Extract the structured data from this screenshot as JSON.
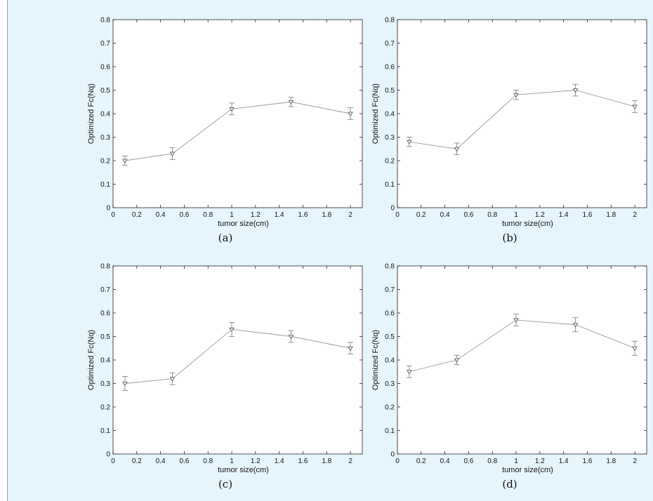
{
  "chart_data": [
    {
      "type": "line",
      "panel_label": "(a)",
      "xlabel": "tumor size(cm)",
      "ylabel": "Optimized Fc(Nq)",
      "xlim": [
        0,
        2.1
      ],
      "ylim": [
        0,
        0.8
      ],
      "xticks": [
        0,
        0.2,
        0.4,
        0.6,
        0.8,
        1,
        1.2,
        1.4,
        1.6,
        1.8,
        2
      ],
      "yticks": [
        0,
        0.1,
        0.2,
        0.3,
        0.4,
        0.5,
        0.6,
        0.7,
        0.8
      ],
      "grid": false,
      "series": [
        {
          "x": [
            0.1,
            0.5,
            1,
            1.5,
            2
          ],
          "y": [
            0.2,
            0.23,
            0.42,
            0.45,
            0.4
          ],
          "err": [
            0.02,
            0.025,
            0.025,
            0.02,
            0.025
          ]
        }
      ]
    },
    {
      "type": "line",
      "panel_label": "(b)",
      "xlabel": "tumor size(cm)",
      "ylabel": "Optimized Fc(Nq)",
      "xlim": [
        0,
        2.1
      ],
      "ylim": [
        0,
        0.8
      ],
      "xticks": [
        0,
        0.2,
        0.4,
        0.6,
        0.8,
        1,
        1.2,
        1.4,
        1.6,
        1.8,
        2
      ],
      "yticks": [
        0,
        0.1,
        0.2,
        0.3,
        0.4,
        0.5,
        0.6,
        0.7,
        0.8
      ],
      "grid": false,
      "series": [
        {
          "x": [
            0.1,
            0.5,
            1,
            1.5,
            2
          ],
          "y": [
            0.28,
            0.25,
            0.48,
            0.5,
            0.43
          ],
          "err": [
            0.02,
            0.025,
            0.02,
            0.025,
            0.025
          ]
        }
      ]
    },
    {
      "type": "line",
      "panel_label": "(c)",
      "xlabel": "tumor size(cm)",
      "ylabel": "Optimized Fc(Nq)",
      "xlim": [
        0,
        2.1
      ],
      "ylim": [
        0,
        0.8
      ],
      "xticks": [
        0,
        0.2,
        0.4,
        0.6,
        0.8,
        1,
        1.2,
        1.4,
        1.6,
        1.8,
        2
      ],
      "yticks": [
        0,
        0.1,
        0.2,
        0.3,
        0.4,
        0.5,
        0.6,
        0.7,
        0.8
      ],
      "grid": false,
      "series": [
        {
          "x": [
            0.1,
            0.5,
            1,
            1.5,
            2
          ],
          "y": [
            0.3,
            0.32,
            0.53,
            0.5,
            0.45
          ],
          "err": [
            0.03,
            0.025,
            0.03,
            0.025,
            0.025
          ]
        }
      ]
    },
    {
      "type": "line",
      "panel_label": "(d)",
      "xlabel": "tumor size(cm)",
      "ylabel": "Optimized Fc(Nq)",
      "xlim": [
        0,
        2.1
      ],
      "ylim": [
        0,
        0.8
      ],
      "xticks": [
        0,
        0.2,
        0.4,
        0.6,
        0.8,
        1,
        1.2,
        1.4,
        1.6,
        1.8,
        2
      ],
      "yticks": [
        0,
        0.1,
        0.2,
        0.3,
        0.4,
        0.5,
        0.6,
        0.7,
        0.8
      ],
      "grid": false,
      "series": [
        {
          "x": [
            0.1,
            0.5,
            1,
            1.5,
            2
          ],
          "y": [
            0.35,
            0.4,
            0.57,
            0.55,
            0.45
          ],
          "err": [
            0.025,
            0.02,
            0.025,
            0.03,
            0.03
          ]
        }
      ]
    }
  ]
}
